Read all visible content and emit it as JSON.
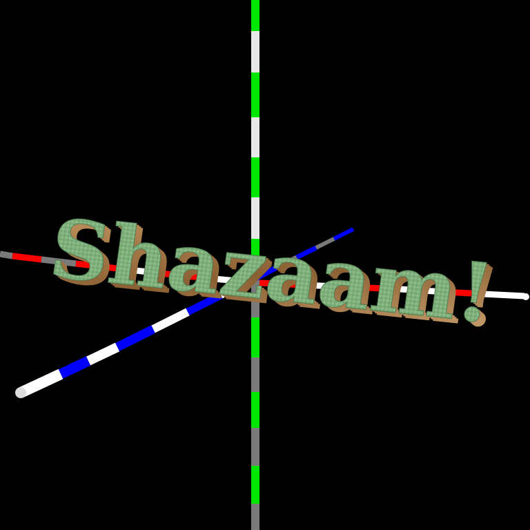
{
  "scene": {
    "background_color": "#000000",
    "headline": "Shazaam!",
    "headline_face_color": "#7fb07c",
    "headline_side_color": "#a37a4c",
    "axes": [
      {
        "name": "x-axis",
        "colors": [
          "#ff0000",
          "#ffffff",
          "#7a7a7a"
        ]
      },
      {
        "name": "y-axis",
        "colors": [
          "#00e600",
          "#e8e8e8",
          "#7a7a7a"
        ]
      },
      {
        "name": "z-axis",
        "colors": [
          "#0000ff",
          "#ffffff",
          "#7a7a7a"
        ]
      }
    ]
  }
}
